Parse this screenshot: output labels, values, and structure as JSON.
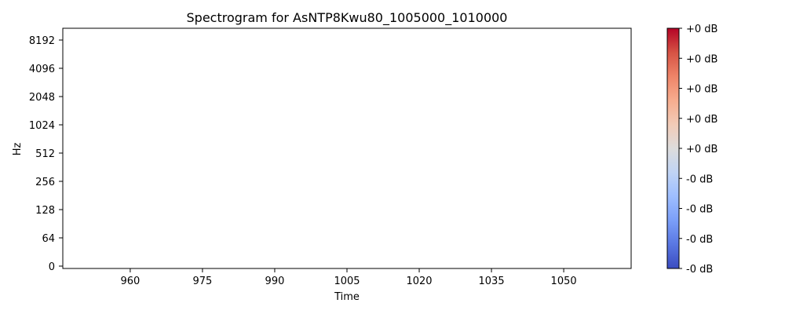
{
  "chart_data": {
    "type": "heatmap",
    "title": "Spectrogram for AsNTP8Kwu80_1005000_1010000",
    "xlabel": "Time",
    "ylabel": "Hz",
    "x_ticks": [
      "960",
      "975",
      "990",
      "1005",
      "1020",
      "1035",
      "1050"
    ],
    "x_tick_values": [
      960,
      975,
      990,
      1005,
      1020,
      1035,
      1050
    ],
    "xlim": [
      946,
      1064
    ],
    "y_ticks": [
      "0",
      "64",
      "128",
      "256",
      "512",
      "1024",
      "2048",
      "4096",
      "8192"
    ],
    "y_scale": "log2 (symlog)",
    "grid": false,
    "values": [],
    "colorbar": {
      "colormap": "coolwarm",
      "tick_labels": [
        "+0 dB",
        "+0 dB",
        "+0 dB",
        "+0 dB",
        "+0 dB",
        "-0 dB",
        "-0 dB",
        "-0 dB",
        "-0 dB"
      ],
      "colors": [
        "#3b4cc0",
        "#5977e3",
        "#7b9ff9",
        "#9ebeff",
        "#c0d4f5",
        "#dddcdc",
        "#f2cbb7",
        "#f7ac8e",
        "#ee8468",
        "#d65244",
        "#b40426"
      ]
    }
  }
}
